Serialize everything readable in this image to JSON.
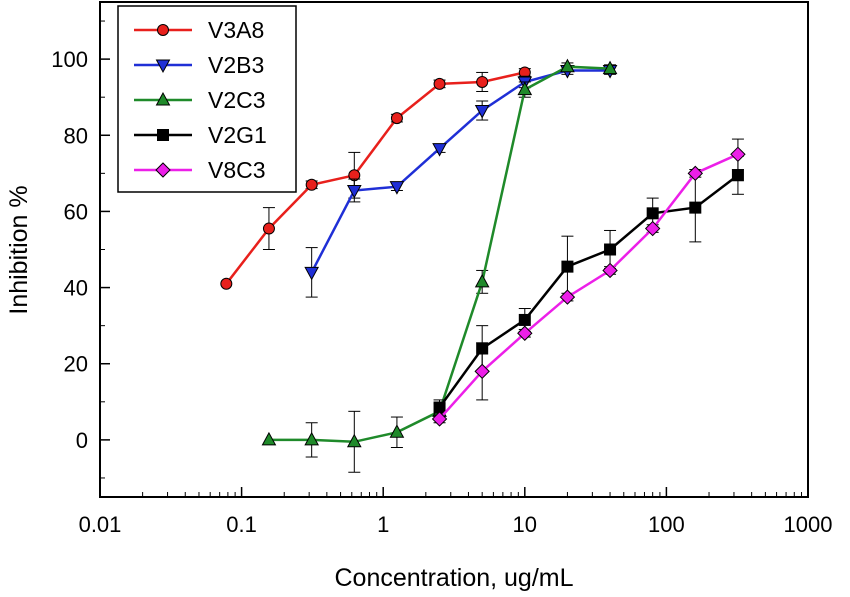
{
  "chart_data": {
    "type": "line",
    "xlabel": "Concentration, ug/mL",
    "ylabel": "Inhibition %",
    "xscale": "log",
    "xlim": [
      0.01,
      1000
    ],
    "ylim": [
      -15,
      115
    ],
    "xticks": [
      0.01,
      0.1,
      1,
      10,
      100,
      1000
    ],
    "xtick_labels": [
      "0.01",
      "0.1",
      "1",
      "10",
      "100",
      "1000"
    ],
    "yticks": [
      0,
      20,
      40,
      60,
      80,
      100
    ],
    "ytick_labels": [
      "0",
      "20",
      "40",
      "60",
      "80",
      "100"
    ],
    "grid": false,
    "legend_position": "top-left",
    "series": [
      {
        "name": "V3A8",
        "color": "#e8201c",
        "marker": "circle",
        "x": [
          0.078,
          0.156,
          0.3125,
          0.625,
          1.25,
          2.5,
          5,
          10
        ],
        "y": [
          41,
          55.5,
          67,
          69.5,
          84.5,
          93.5,
          94,
          96.5
        ],
        "err": [
          0,
          5.5,
          1,
          6,
          1,
          1,
          2.5,
          1
        ]
      },
      {
        "name": "V2B3",
        "color": "#1f2fd6",
        "marker": "triangle-down",
        "x": [
          0.3125,
          0.625,
          1.25,
          2.5,
          5,
          10,
          20,
          40
        ],
        "y": [
          44,
          65.5,
          66.5,
          76.5,
          86.5,
          94,
          97,
          97
        ],
        "err": [
          6.5,
          3,
          1,
          1,
          2.5,
          1.5,
          1,
          1
        ]
      },
      {
        "name": "V2C3",
        "color": "#1f8a2a",
        "marker": "triangle-up",
        "x": [
          0.156,
          0.3125,
          0.625,
          1.25,
          2.5,
          5,
          10,
          20,
          40
        ],
        "y": [
          0,
          0,
          -0.5,
          2,
          7.5,
          41.5,
          92,
          98,
          97.5
        ],
        "err": [
          0,
          4.5,
          8,
          4,
          2,
          3,
          2,
          1,
          1
        ]
      },
      {
        "name": "V2G1",
        "color": "#000000",
        "marker": "square",
        "x": [
          2.5,
          5,
          10,
          20,
          40,
          80,
          160,
          320
        ],
        "y": [
          8.5,
          24,
          31.5,
          45.5,
          50,
          59.5,
          61,
          69.5
        ],
        "err": [
          2,
          6,
          3,
          8,
          5,
          4,
          9,
          5
        ]
      },
      {
        "name": "V8C3",
        "color": "#ec1fe8",
        "marker": "diamond",
        "x": [
          2.5,
          5,
          10,
          20,
          40,
          80,
          160,
          320
        ],
        "y": [
          5.5,
          18,
          28,
          37.5,
          44.5,
          55.5,
          70,
          75
        ],
        "err": [
          1,
          7.5,
          1,
          1,
          1,
          1,
          1,
          4
        ]
      }
    ]
  }
}
